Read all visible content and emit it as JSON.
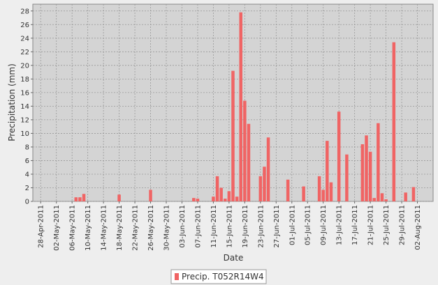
{
  "chart_data": {
    "type": "bar",
    "x_label": "Date",
    "y_label": "Precipitation (mm)",
    "x": [
      "07-May-2011",
      "08-May-2011",
      "09-May-2011",
      "18-May-2011",
      "26-May-2011",
      "06-Jun-2011",
      "07-Jun-2011",
      "11-Jun-2011",
      "12-Jun-2011",
      "13-Jun-2011",
      "14-Jun-2011",
      "15-Jun-2011",
      "16-Jun-2011",
      "17-Jun-2011",
      "18-Jun-2011",
      "19-Jun-2011",
      "20-Jun-2011",
      "23-Jun-2011",
      "24-Jun-2011",
      "25-Jun-2011",
      "30-Jun-2011",
      "04-Jul-2011",
      "08-Jul-2011",
      "09-Jul-2011",
      "10-Jul-2011",
      "11-Jul-2011",
      "13-Jul-2011",
      "15-Jul-2011",
      "19-Jul-2011",
      "20-Jul-2011",
      "21-Jul-2011",
      "22-Jul-2011",
      "23-Jul-2011",
      "24-Jul-2011",
      "25-Jul-2011",
      "27-Jul-2011",
      "30-Jul-2011",
      "01-Aug-2011"
    ],
    "series": [
      {
        "name": "Precip. T052R14W4",
        "color": "#f06464",
        "values": [
          0.6,
          0.6,
          1.1,
          1.0,
          1.7,
          0.5,
          0.4,
          0.7,
          3.7,
          2.0,
          0.4,
          1.5,
          19.2,
          0.7,
          27.8,
          14.8,
          11.4,
          3.7,
          5.1,
          9.4,
          3.2,
          2.2,
          3.7,
          1.7,
          8.9,
          2.8,
          13.2,
          6.9,
          8.4,
          9.7,
          7.3,
          0.5,
          11.5,
          1.2,
          0.3,
          23.4,
          1.3,
          2.1
        ]
      }
    ],
    "xlim": [
      "26-Apr-2011",
      "06-Aug-2011"
    ],
    "xticks": [
      "28-Apr-2011",
      "02-May-2011",
      "06-May-2011",
      "10-May-2011",
      "14-May-2011",
      "18-May-2011",
      "22-May-2011",
      "26-May-2011",
      "30-May-2011",
      "03-Jun-2011",
      "07-Jun-2011",
      "11-Jun-2011",
      "15-Jun-2011",
      "19-Jun-2011",
      "23-Jun-2011",
      "27-Jun-2011",
      "01-Jul-2011",
      "05-Jul-2011",
      "09-Jul-2011",
      "13-Jul-2011",
      "17-Jul-2011",
      "21-Jul-2011",
      "25-Jul-2011",
      "29-Jul-2011",
      "02-Aug-2011"
    ],
    "ylim": [
      0,
      29
    ],
    "yticks": [
      0,
      2,
      4,
      6,
      8,
      10,
      12,
      14,
      16,
      18,
      20,
      22,
      24,
      26,
      28
    ],
    "grid": true
  }
}
